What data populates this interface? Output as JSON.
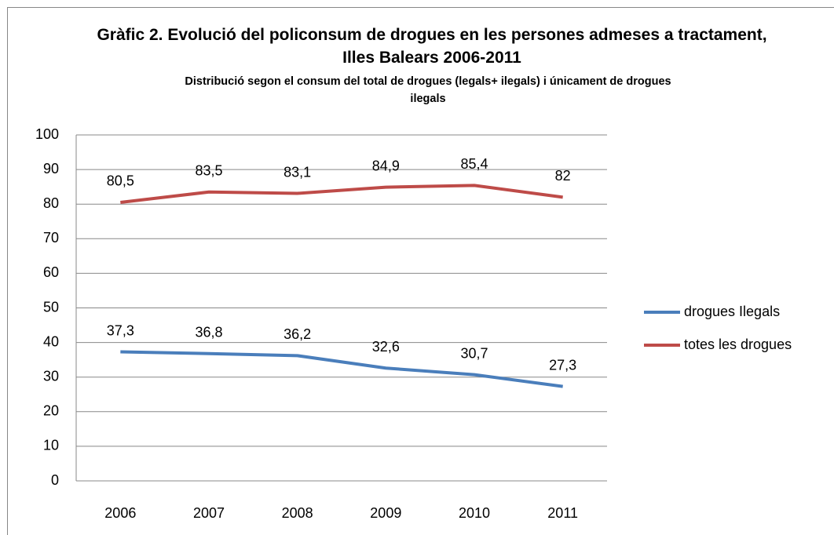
{
  "chart_data": {
    "type": "line",
    "title": "Gràfic 2. Evolució del policonsum de drogues en les persones admeses a tractament, Illes Balears 2006-2011",
    "subtitle": "Distribució segon el consum del total de drogues (legals+ ilegals) i únicament de drogues ilegals",
    "categories": [
      "2006",
      "2007",
      "2008",
      "2009",
      "2010",
      "2011"
    ],
    "series": [
      {
        "name": "drogues Ilegals",
        "color": "#4a7ebb",
        "values": [
          37.3,
          36.8,
          36.2,
          32.6,
          30.7,
          27.3
        ],
        "value_labels": [
          "37,3",
          "36,8",
          "36,2",
          "32,6",
          "30,7",
          "27,3"
        ]
      },
      {
        "name": "totes les drogues",
        "color": "#be4b48",
        "values": [
          80.5,
          83.5,
          83.1,
          84.9,
          85.4,
          82
        ],
        "value_labels": [
          "80,5",
          "83,5",
          "83,1",
          "84,9",
          "85,4",
          "82"
        ]
      }
    ],
    "ylim": [
      0,
      100
    ],
    "yticks": [
      0,
      10,
      20,
      30,
      40,
      50,
      60,
      70,
      80,
      90,
      100
    ],
    "grid": true,
    "legend": "right"
  }
}
